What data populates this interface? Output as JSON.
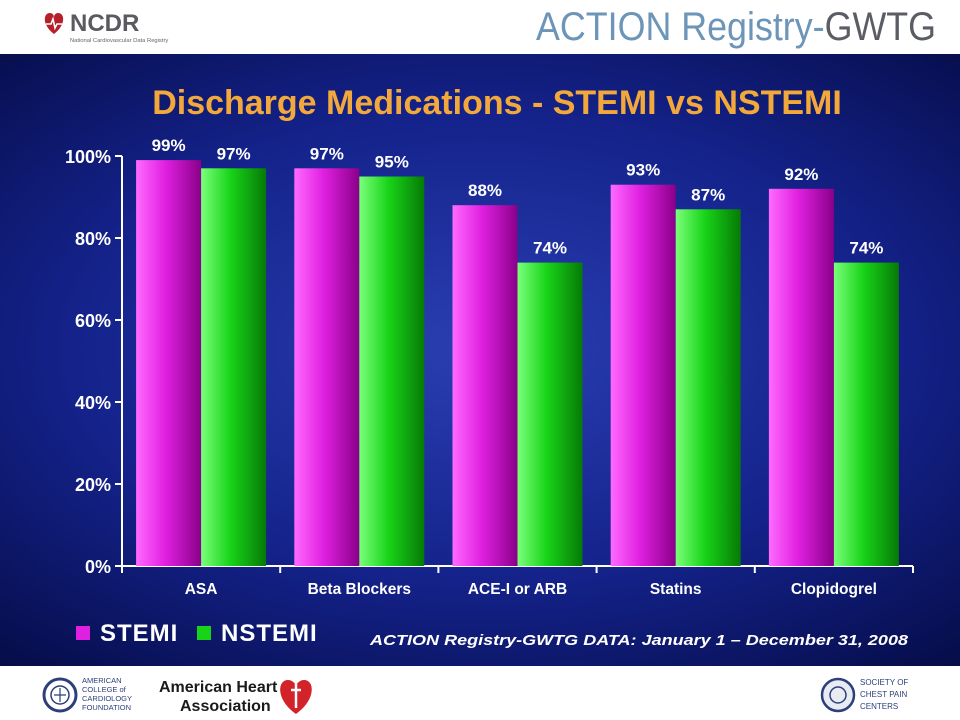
{
  "header": {
    "ncdr_name": "NCDR",
    "ncdr_tagline": "National Cardiovascular Data Registry",
    "action_logo_text_1": "ACTION Registry",
    "action_logo_text_2": "GWTG"
  },
  "footer": {
    "acc_lines": [
      "AMERICAN",
      "COLLEGE of",
      "CARDIOLOGY",
      "FOUNDATION"
    ],
    "aha_line1": "American Heart",
    "aha_line2": "Association",
    "scpc_lines": [
      "SOCIETY OF",
      "CHEST PAIN",
      "CENTERS"
    ]
  },
  "colors": {
    "stemi": "#e020e0",
    "nstemi": "#18d418",
    "title": "#f2a83a",
    "panel": "#14228a"
  },
  "chart_data": {
    "type": "bar",
    "title": "Discharge Medications - STEMI vs NSTEMI",
    "categories": [
      "ASA",
      "Beta Blockers",
      "ACE-I or ARB",
      "Statins",
      "Clopidogrel"
    ],
    "series": [
      {
        "name": "STEMI",
        "values": [
          99,
          97,
          88,
          93,
          92
        ],
        "labels": [
          "99%",
          "97%",
          "88%",
          "93%",
          "92%"
        ]
      },
      {
        "name": "NSTEMI",
        "values": [
          97,
          95,
          74,
          87,
          74
        ],
        "labels": [
          "97%",
          "95%",
          "74%",
          "87%",
          "74%"
        ]
      }
    ],
    "ylim": [
      0,
      100
    ],
    "yticks": [
      0,
      20,
      40,
      60,
      80,
      100
    ],
    "ytick_labels": [
      "0%",
      "20%",
      "40%",
      "60%",
      "80%",
      "100%"
    ],
    "legend": "bottom-left",
    "grid": false,
    "annotation": "ACTION Registry-GWTG DATA: January 1 – December 31, 2008"
  }
}
